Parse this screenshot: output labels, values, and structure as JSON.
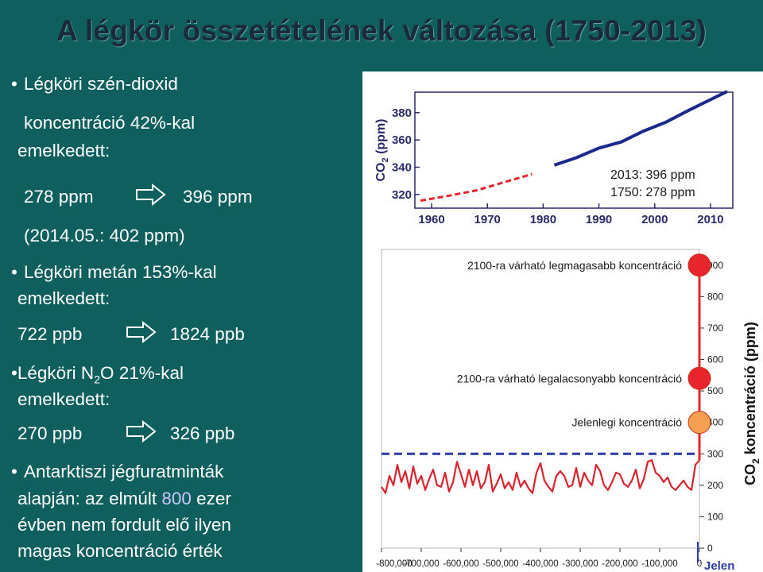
{
  "title": "A légkör összetételének változása (1750-2013)",
  "left": {
    "co2_line1": "Légköri szén-dioxid",
    "co2_line2": "koncentráció 42%-kal",
    "co2_line3": "emelkedett:",
    "co2_from": "278 ppm",
    "co2_to": "396 ppm",
    "co2_note": "(2014.05.: 402 ppm)",
    "ch4_line1": "Légköri metán 153%-kal",
    "ch4_line2": "emelkedett:",
    "ch4_from": "722 ppb",
    "ch4_to": "1824 ppb",
    "n2o_a": "Légköri N",
    "n2o_sub": "2",
    "n2o_b": "O 21%-kal",
    "n2o_line2": "emelkedett:",
    "n2o_from": "270 ppb",
    "n2o_to": "326 ppb",
    "ant_line1": "Antarktiszi jégfuratminták",
    "ant_line2a": "alapján: az elmúlt ",
    "ant_line2b": "800",
    "ant_line2c": " ezer",
    "ant_line3": "évben nem fordult elő ilyen",
    "ant_line4": "magas koncentráció érték"
  },
  "chart_data": [
    {
      "type": "line",
      "ylabel_a": "CO",
      "ylabel_sub": "2",
      "ylabel_b": " (ppm)",
      "xlim": [
        1957,
        2014
      ],
      "ylim": [
        310,
        395
      ],
      "xticks": [
        1960,
        1970,
        1980,
        1990,
        2000,
        2010
      ],
      "yticks": [
        320,
        340,
        360,
        380
      ],
      "annotation_1": "2013: 396 ppm",
      "annotation_2": "1750: 278 ppm",
      "series": [
        {
          "color": "#e8242c",
          "style": "dashed",
          "x": [
            1958,
            1963,
            1968,
            1973,
            1978
          ],
          "y": [
            315.5,
            319,
            323,
            329,
            335
          ]
        },
        {
          "color": "#1a2a8c",
          "style": "solid",
          "x": [
            1982,
            1986,
            1990,
            1994,
            1998,
            2002,
            2006,
            2010,
            2013
          ],
          "y": [
            341.5,
            347,
            354,
            358.5,
            366.5,
            373,
            381.5,
            389.5,
            395.5
          ]
        }
      ]
    },
    {
      "type": "line",
      "ylabel_a": "CO",
      "ylabel_sub": "2",
      "ylabel_b": " koncentráció (ppm)",
      "xlim": [
        -800000,
        0
      ],
      "ylim": [
        0,
        950
      ],
      "xticks": [
        -800000,
        -700000,
        -600000,
        -500000,
        -400000,
        -300000,
        -200000,
        -100000,
        0
      ],
      "xtick_labels": [
        "-800,000",
        "-700,000",
        "-600,000",
        "-500,000",
        "-400,000",
        "-300,000",
        "-200,000",
        "-100,000",
        "0"
      ],
      "yticks": [
        0,
        100,
        200,
        300,
        400,
        500,
        600,
        700,
        800,
        900
      ],
      "reference_line_ppm": 300,
      "now_label": "Jelen",
      "markers": [
        {
          "label": "2100-ra várható legmagasabb koncentráció",
          "ppm": 900,
          "color": "#e8242c"
        },
        {
          "label": "2100-ra várható legalacsonyabb koncentráció",
          "ppm": 540,
          "color": "#e8242c"
        },
        {
          "label": "Jelenlegi koncentráció",
          "ppm": 400,
          "color": "#f5a050"
        }
      ],
      "series": [
        {
          "color": "#d8242c",
          "x": [
            -800000,
            -790000,
            -780000,
            -770000,
            -760000,
            -750000,
            -740000,
            -730000,
            -720000,
            -710000,
            -700000,
            -690000,
            -680000,
            -670000,
            -660000,
            -650000,
            -640000,
            -630000,
            -620000,
            -610000,
            -600000,
            -590000,
            -580000,
            -570000,
            -560000,
            -550000,
            -540000,
            -530000,
            -520000,
            -510000,
            -500000,
            -490000,
            -480000,
            -470000,
            -460000,
            -450000,
            -440000,
            -430000,
            -420000,
            -410000,
            -400000,
            -390000,
            -380000,
            -370000,
            -360000,
            -350000,
            -340000,
            -330000,
            -320000,
            -310000,
            -300000,
            -290000,
            -280000,
            -270000,
            -260000,
            -250000,
            -240000,
            -230000,
            -220000,
            -210000,
            -200000,
            -190000,
            -180000,
            -170000,
            -160000,
            -150000,
            -140000,
            -130000,
            -120000,
            -110000,
            -100000,
            -90000,
            -80000,
            -70000,
            -60000,
            -50000,
            -40000,
            -30000,
            -20000,
            -10000,
            0
          ],
          "y": [
            195,
            175,
            230,
            200,
            265,
            210,
            245,
            190,
            260,
            205,
            230,
            185,
            220,
            250,
            200,
            195,
            240,
            180,
            210,
            275,
            235,
            195,
            250,
            200,
            245,
            190,
            210,
            265,
            180,
            205,
            235,
            190,
            210,
            185,
            240,
            195,
            215,
            190,
            175,
            240,
            270,
            215,
            195,
            180,
            230,
            245,
            230,
            195,
            200,
            255,
            195,
            240,
            215,
            200,
            265,
            245,
            200,
            185,
            210,
            240,
            235,
            205,
            195,
            215,
            250,
            190,
            220,
            275,
            280,
            240,
            230,
            210,
            225,
            195,
            185,
            200,
            215,
            195,
            185,
            265,
            280
          ]
        }
      ]
    }
  ]
}
